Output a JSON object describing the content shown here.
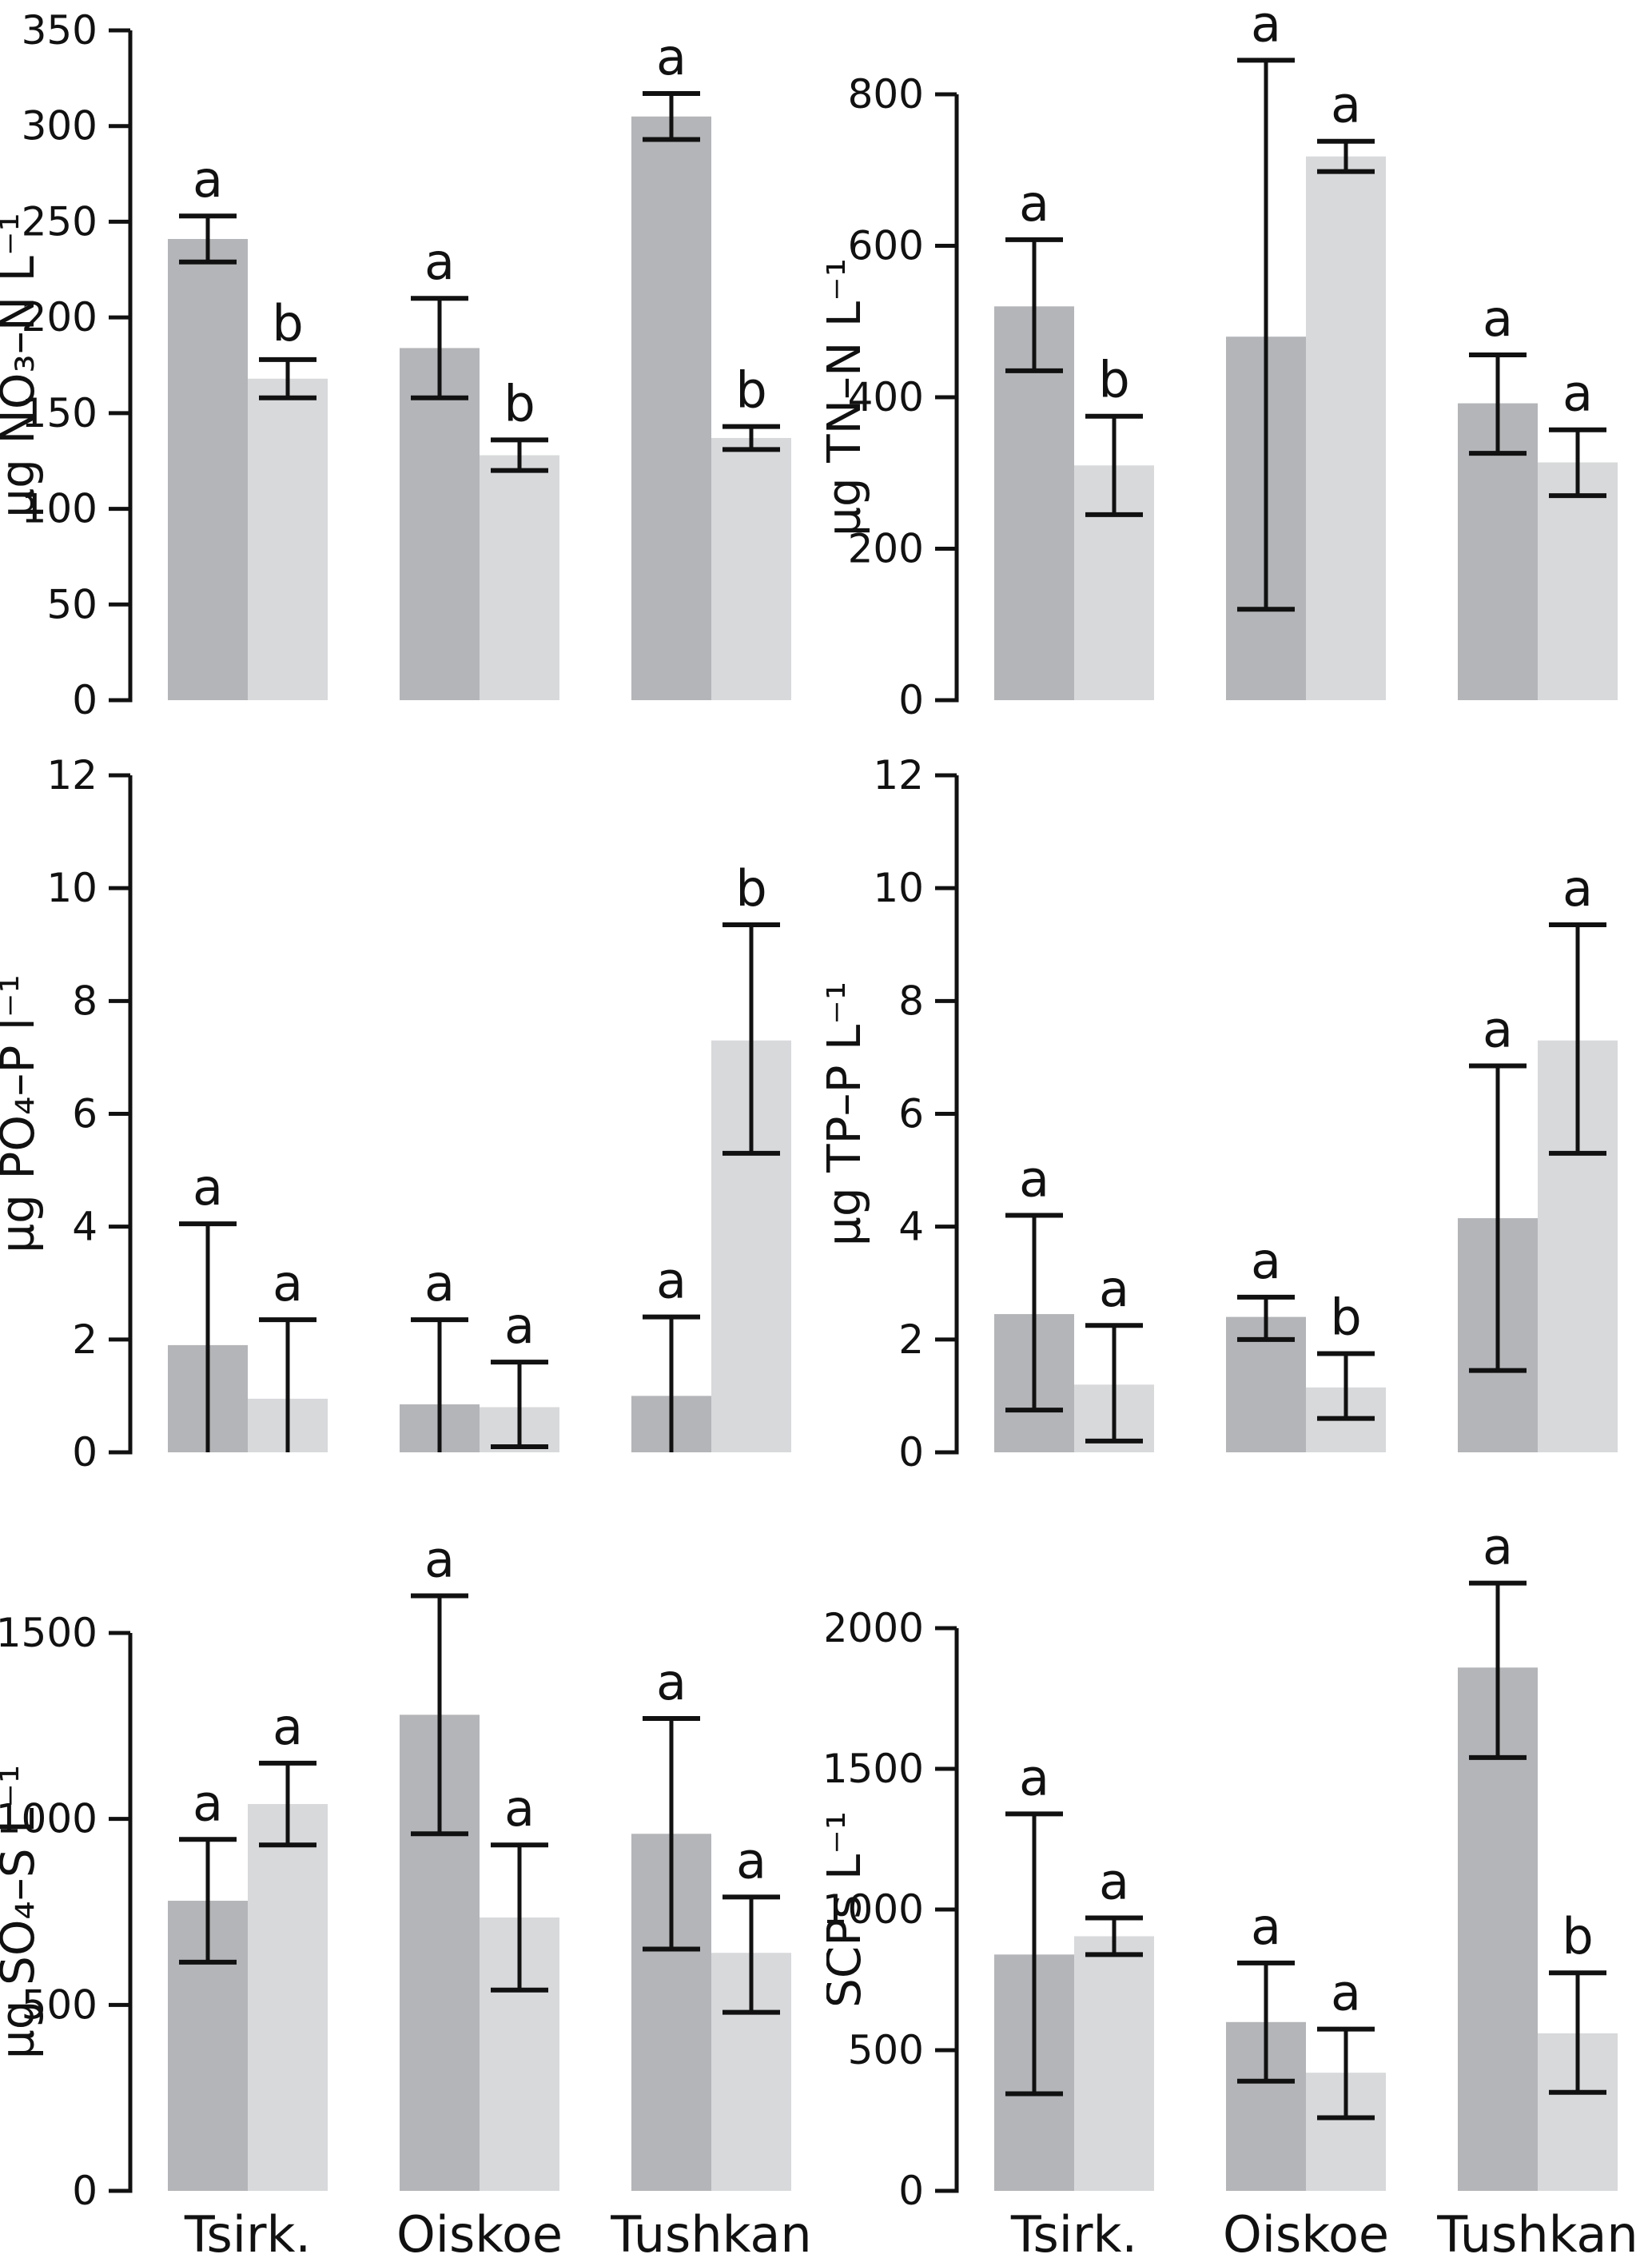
{
  "figure": {
    "description": "Six-panel grouped bar figure of water chemistry and SCP concentrations at three sites, with error bars and significance letters",
    "background": "#ffffff",
    "text_color": "#111111",
    "bar_colors": {
      "dark_gray": "#b4b5b8",
      "light_gray": "#d8d9db"
    },
    "sites": [
      "Tsirk.",
      "Oiskoe",
      "Tushkan"
    ],
    "legend": "none"
  },
  "chart_data": [
    {
      "id": "no3n",
      "type": "bar",
      "title": "",
      "ylabel": "µg NO₃–N L⁻¹",
      "xlabel": "",
      "categories": [
        "Tsirk.",
        "Oiskoe",
        "Tushkan"
      ],
      "ylim": [
        0,
        350
      ],
      "yticks": [
        0,
        50,
        100,
        150,
        200,
        250,
        300,
        350
      ],
      "grid": false,
      "legend": "none",
      "x_axis_labels_visible": false,
      "series": [
        {
          "name": "dark_gray",
          "values": [
            241,
            184,
            305
          ],
          "err_lo": [
            229,
            158,
            293
          ],
          "err_hi": [
            253,
            210,
            317
          ],
          "sig_letters": [
            "a",
            "a",
            "a"
          ]
        },
        {
          "name": "light_gray",
          "values": [
            168,
            128,
            137
          ],
          "err_lo": [
            158,
            120,
            131
          ],
          "err_hi": [
            178,
            136,
            143
          ],
          "sig_letters": [
            "b",
            "b",
            "b"
          ]
        }
      ]
    },
    {
      "id": "tnn",
      "type": "bar",
      "title": "",
      "ylabel": "µg TN–N L⁻¹",
      "xlabel": "",
      "categories": [
        "Tsirk.",
        "Oiskoe",
        "Tushkan"
      ],
      "ylim": [
        0,
        800
      ],
      "yticks": [
        0,
        200,
        400,
        600,
        800
      ],
      "grid": false,
      "legend": "none",
      "x_axis_labels_visible": false,
      "series": [
        {
          "name": "dark_gray",
          "values": [
            520,
            480,
            392
          ],
          "err_lo": [
            435,
            120,
            326
          ],
          "err_hi": [
            608,
            845,
            456
          ],
          "sig_letters": [
            "a",
            "a",
            "a"
          ]
        },
        {
          "name": "light_gray",
          "values": [
            310,
            718,
            314
          ],
          "err_lo": [
            245,
            698,
            270
          ],
          "err_hi": [
            375,
            738,
            357
          ],
          "sig_letters": [
            "b",
            "a",
            "a"
          ]
        }
      ]
    },
    {
      "id": "po4p",
      "type": "bar",
      "title": "",
      "ylabel": "µg PO₄–P l⁻¹",
      "xlabel": "",
      "categories": [
        "Tsirk.",
        "Oiskoe",
        "Tushkan"
      ],
      "ylim": [
        0,
        12
      ],
      "yticks": [
        0,
        2,
        4,
        6,
        8,
        10,
        12
      ],
      "grid": false,
      "legend": "none",
      "x_axis_labels_visible": false,
      "series": [
        {
          "name": "dark_gray",
          "values": [
            1.9,
            0.85,
            1.0
          ],
          "err_lo": [
            null,
            null,
            null
          ],
          "err_hi": [
            4.05,
            2.35,
            2.4
          ],
          "sig_letters": [
            "a",
            "a",
            "a"
          ]
        },
        {
          "name": "light_gray",
          "values": [
            0.95,
            0.8,
            7.3
          ],
          "err_lo": [
            null,
            0.1,
            5.3
          ],
          "err_hi": [
            2.35,
            1.6,
            9.35
          ],
          "sig_letters": [
            "a",
            "a",
            "b"
          ]
        }
      ]
    },
    {
      "id": "tpp",
      "type": "bar",
      "title": "",
      "ylabel": "µg TP–P L⁻¹",
      "xlabel": "",
      "categories": [
        "Tsirk.",
        "Oiskoe",
        "Tushkan"
      ],
      "ylim": [
        0,
        12
      ],
      "yticks": [
        0,
        2,
        4,
        6,
        8,
        10,
        12
      ],
      "grid": false,
      "legend": "none",
      "x_axis_labels_visible": false,
      "series": [
        {
          "name": "dark_gray",
          "values": [
            2.45,
            2.4,
            4.15
          ],
          "err_lo": [
            0.75,
            2.0,
            1.45
          ],
          "err_hi": [
            4.2,
            2.75,
            6.85
          ],
          "sig_letters": [
            "a",
            "a",
            "a"
          ]
        },
        {
          "name": "light_gray",
          "values": [
            1.2,
            1.15,
            7.3
          ],
          "err_lo": [
            0.2,
            0.6,
            5.3
          ],
          "err_hi": [
            2.25,
            1.75,
            9.35
          ],
          "sig_letters": [
            "a",
            "b",
            "a"
          ]
        }
      ]
    },
    {
      "id": "so4s",
      "type": "bar",
      "title": "",
      "ylabel": "µg SO₄–S L⁻¹",
      "xlabel": "",
      "categories": [
        "Tsirk.",
        "Oiskoe",
        "Tushkan"
      ],
      "ylim": [
        0,
        1500
      ],
      "yticks": [
        0,
        500,
        1000,
        1500
      ],
      "grid": false,
      "legend": "none",
      "x_axis_labels_visible": true,
      "series": [
        {
          "name": "dark_gray",
          "values": [
            780,
            1280,
            960
          ],
          "err_lo": [
            615,
            960,
            650
          ],
          "err_hi": [
            945,
            1600,
            1270
          ],
          "sig_letters": [
            "a",
            "a",
            "a"
          ]
        },
        {
          "name": "light_gray",
          "values": [
            1040,
            735,
            640
          ],
          "err_lo": [
            930,
            540,
            480
          ],
          "err_hi": [
            1150,
            930,
            790
          ],
          "sig_letters": [
            "a",
            "a",
            "a"
          ]
        }
      ]
    },
    {
      "id": "scps",
      "type": "bar",
      "title": "",
      "ylabel": "SCPs L⁻¹",
      "xlabel": "",
      "categories": [
        "Tsirk.",
        "Oiskoe",
        "Tushkan"
      ],
      "ylim": [
        0,
        2000
      ],
      "yticks": [
        0,
        500,
        1000,
        1500,
        2000
      ],
      "grid": false,
      "legend": "none",
      "x_axis_labels_visible": true,
      "series": [
        {
          "name": "dark_gray",
          "values": [
            840,
            600,
            1860
          ],
          "err_lo": [
            345,
            390,
            1540
          ],
          "err_hi": [
            1340,
            810,
            2160
          ],
          "sig_letters": [
            "a",
            "a",
            "a"
          ]
        },
        {
          "name": "light_gray",
          "values": [
            905,
            420,
            560
          ],
          "err_lo": [
            840,
            260,
            350
          ],
          "err_hi": [
            970,
            575,
            775
          ],
          "sig_letters": [
            "a",
            "a",
            "b"
          ]
        }
      ]
    }
  ]
}
